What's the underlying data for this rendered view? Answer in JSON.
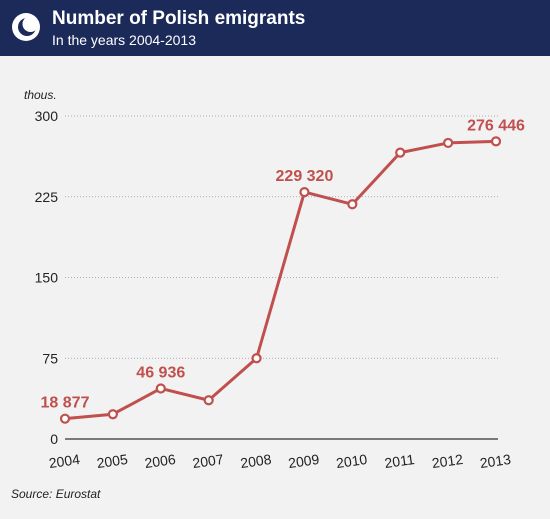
{
  "header": {
    "title": "Number of Polish emigrants",
    "subtitle": "In the years 2004-2013",
    "logo_icon": "crescent-logo-icon",
    "bg_color": "#1c2a5a"
  },
  "footer": {
    "source": "Source: Eurostat"
  },
  "chart_data": {
    "type": "line",
    "x": [
      "2004",
      "2005",
      "2006",
      "2007",
      "2008",
      "2009",
      "2010",
      "2011",
      "2012",
      "2013"
    ],
    "series": [
      {
        "values": [
          18.877,
          23,
          46.936,
          36,
          75,
          229.32,
          218,
          266,
          275,
          276.446
        ],
        "color": "#c0504d"
      }
    ],
    "data_labels": [
      {
        "index": 0,
        "text": "18 877"
      },
      {
        "index": 2,
        "text": "46 936"
      },
      {
        "index": 5,
        "text": "229 320"
      },
      {
        "index": 9,
        "text": "276 446"
      }
    ],
    "unit_label": "thous.",
    "yticks": [
      "0",
      "75",
      "150",
      "225",
      "300"
    ],
    "ylim": [
      0,
      300
    ],
    "grid": "horizontal dotted"
  }
}
